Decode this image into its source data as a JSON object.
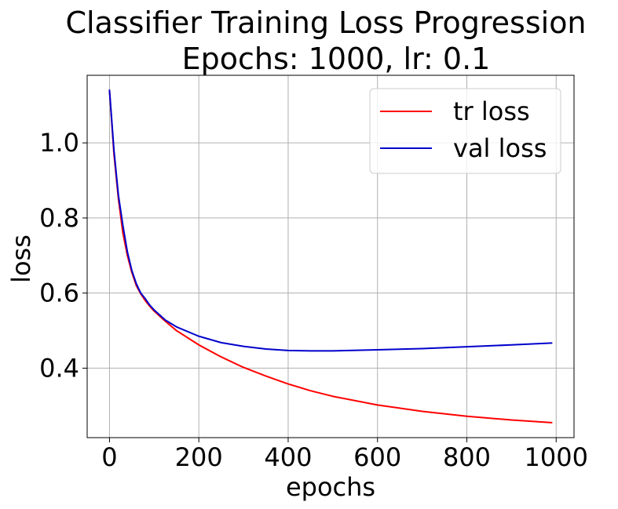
{
  "chart_data": {
    "type": "line",
    "title": "Classifier Training Loss Progression",
    "subtitle": "Epochs: 1000, lr: 0.1",
    "xlabel": "epochs",
    "ylabel": "loss",
    "xlim": [
      -50,
      1040
    ],
    "ylim": [
      0.215,
      1.18
    ],
    "xticks": [
      0,
      200,
      400,
      600,
      800,
      1000
    ],
    "xtick_labels": [
      "0",
      "200",
      "400",
      "600",
      "800",
      "1000"
    ],
    "yticks": [
      0.4,
      0.6,
      0.8,
      1.0
    ],
    "ytick_labels": [
      "0.4",
      "0.6",
      "0.8",
      "1.0"
    ],
    "grid": true,
    "legend_position": "top-right",
    "series": [
      {
        "name": "tr loss",
        "color": "#ff0000",
        "x": [
          0,
          10,
          20,
          30,
          40,
          50,
          60,
          70,
          80,
          90,
          100,
          125,
          150,
          200,
          250,
          300,
          350,
          400,
          450,
          500,
          600,
          700,
          800,
          900,
          990
        ],
        "values": [
          1.14,
          0.97,
          0.85,
          0.76,
          0.7,
          0.655,
          0.62,
          0.598,
          0.58,
          0.565,
          0.552,
          0.525,
          0.5,
          0.462,
          0.43,
          0.402,
          0.379,
          0.358,
          0.34,
          0.325,
          0.302,
          0.285,
          0.272,
          0.262,
          0.255
        ]
      },
      {
        "name": "val loss",
        "color": "#0000cc",
        "x": [
          0,
          10,
          20,
          30,
          40,
          50,
          60,
          70,
          80,
          90,
          100,
          125,
          150,
          200,
          250,
          300,
          350,
          400,
          450,
          500,
          600,
          700,
          800,
          900,
          990
        ],
        "values": [
          1.14,
          0.98,
          0.86,
          0.78,
          0.71,
          0.66,
          0.625,
          0.6,
          0.585,
          0.568,
          0.555,
          0.528,
          0.51,
          0.485,
          0.468,
          0.458,
          0.451,
          0.447,
          0.446,
          0.446,
          0.449,
          0.452,
          0.457,
          0.462,
          0.467
        ]
      }
    ]
  }
}
